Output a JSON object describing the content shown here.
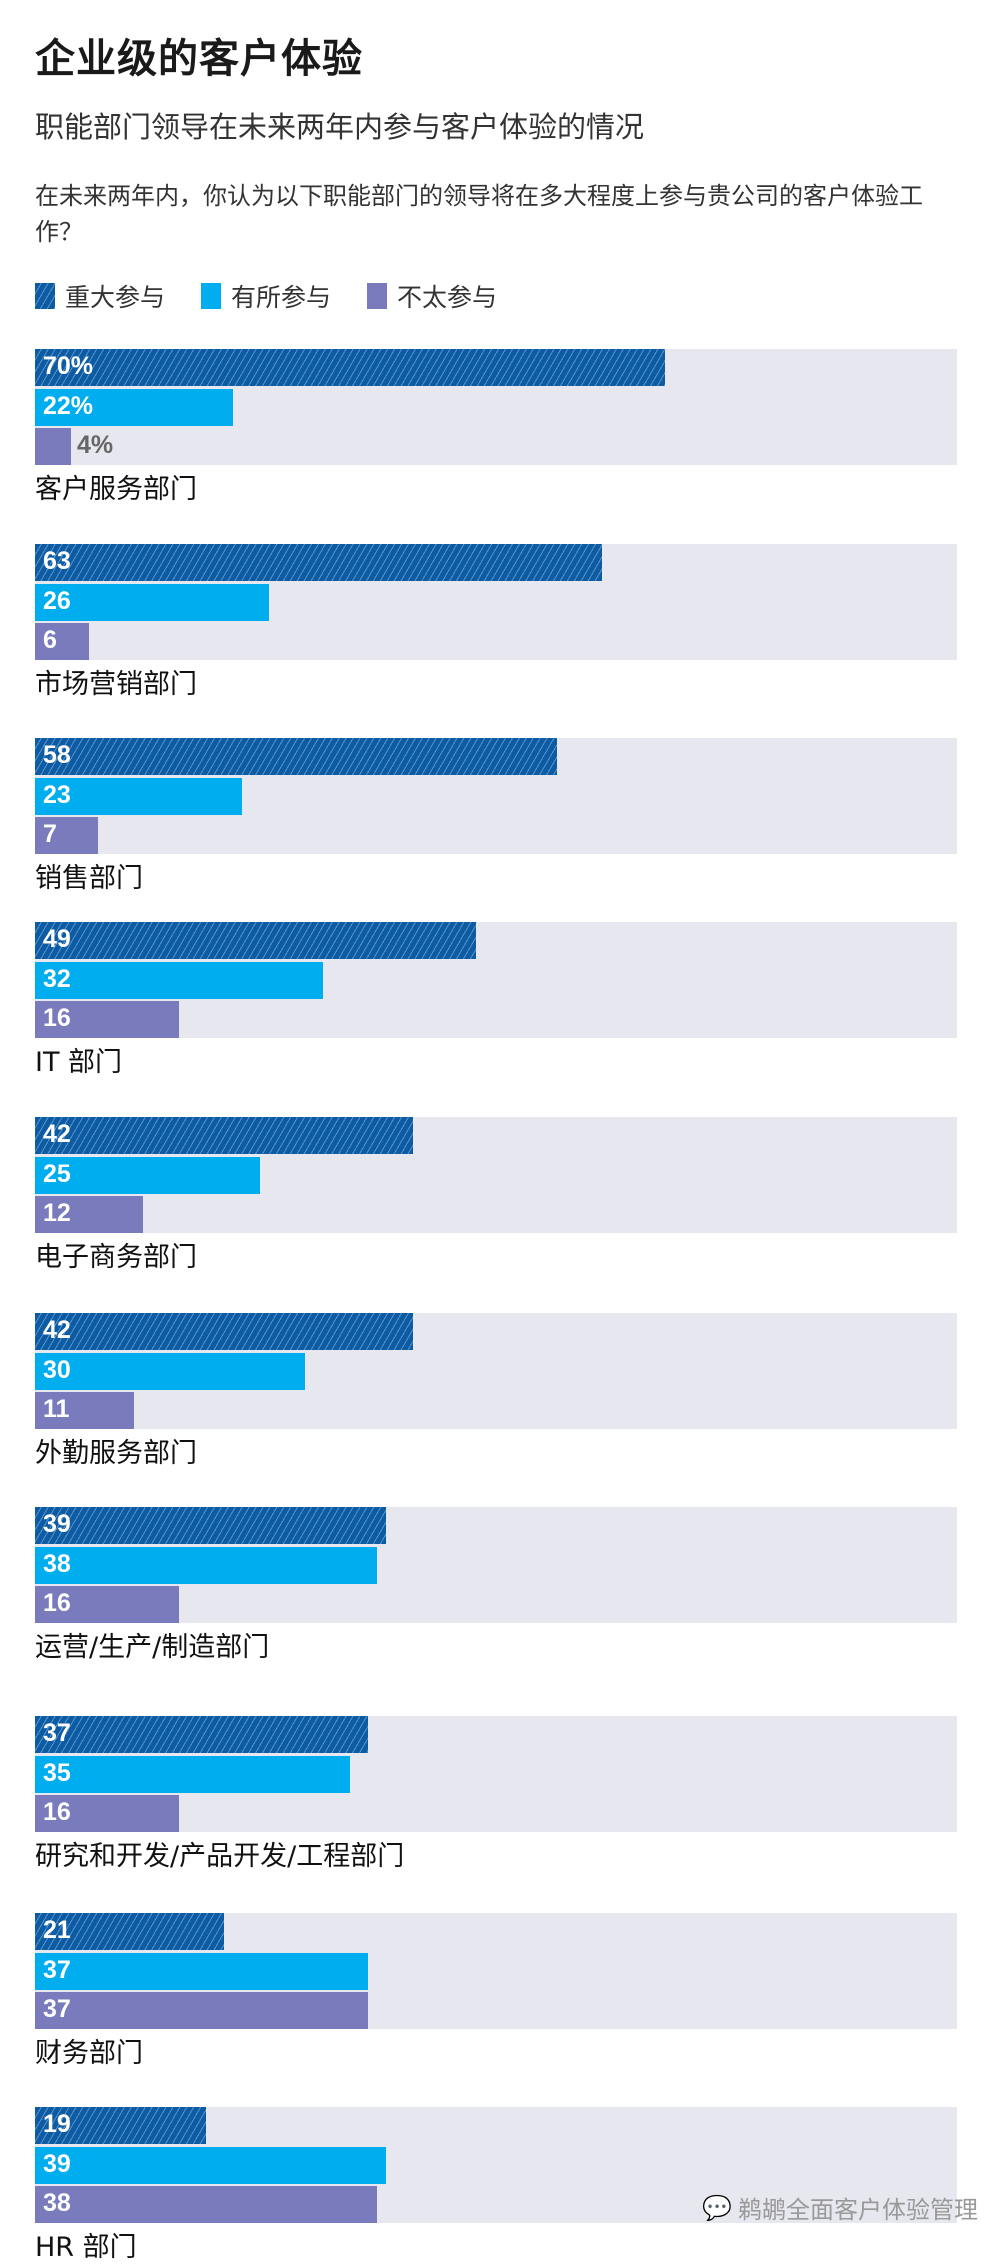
{
  "title": "企业级的客户体验",
  "subtitle": "职能部门领导在未来两年内参与客户体验的情况",
  "question": "在未来两年内，你认为以下职能部门的领导将在多大程度上参与贵公司的客户体验工作？",
  "watermark": "鹈鹕全面客户体验管理",
  "colors": {
    "major": "#0c5ba3",
    "some": "#00aeef",
    "little": "#7a7bbd",
    "track": "#e6e7ef"
  },
  "chart_data": {
    "type": "bar",
    "orientation": "horizontal",
    "unit": "%",
    "xlim": [
      0,
      100
    ],
    "legend_position": "top-left",
    "categories": [
      "客户服务部门",
      "市场营销部门",
      "销售部门",
      "IT 部门",
      "电子商务部门",
      "外勤服务部门",
      "运营/生产/制造部门",
      "研究和开发/产品开发/工程部门",
      "财务部门",
      "HR 部门"
    ],
    "series": [
      {
        "name": "重大参与",
        "values": [
          70,
          63,
          58,
          49,
          42,
          42,
          39,
          37,
          21,
          19
        ]
      },
      {
        "name": "有所参与",
        "values": [
          22,
          26,
          23,
          32,
          25,
          30,
          38,
          35,
          37,
          39
        ]
      },
      {
        "name": "不太参与",
        "values": [
          4,
          6,
          7,
          16,
          12,
          11,
          16,
          16,
          37,
          38
        ]
      }
    ],
    "data_labels": [
      [
        "70%",
        "22%",
        "4%"
      ],
      [
        "63",
        "26",
        "6"
      ],
      [
        "58",
        "23",
        "7"
      ],
      [
        "49",
        "32",
        "16"
      ],
      [
        "42",
        "25",
        "12"
      ],
      [
        "42",
        "30",
        "11"
      ],
      [
        "39",
        "38",
        "16"
      ],
      [
        "37",
        "35",
        "16"
      ],
      [
        "21",
        "37",
        "37"
      ],
      [
        "19",
        "39",
        "38"
      ]
    ]
  }
}
